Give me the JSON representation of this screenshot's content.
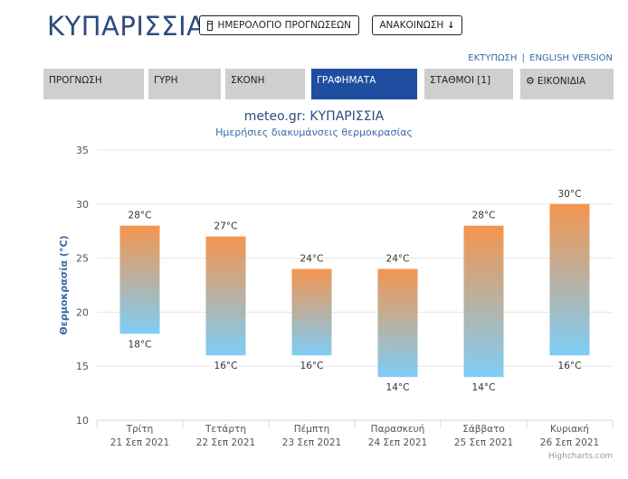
{
  "header": {
    "city": "ΚΥΠΑΡΙΣΣΙΑ",
    "calendar_button": "ΗΜΕΡΟΛΟΓΙΟ ΠΡΟΓΝΩΣΕΩΝ",
    "announcement_button": "ΑΝΑΚΟΙΝΩΣΗ",
    "print_link": "ΕΚΤΥΠΩΣΗ",
    "separator": "|",
    "english_link": "ENGLISH VERSION"
  },
  "tabs": [
    {
      "label": "ΠΡΟΓΝΩΣΗ"
    },
    {
      "label": "ΓΥΡΗ"
    },
    {
      "label": "ΣΚΟΝΗ"
    },
    {
      "label": "ΓΡΑΦΗΜΑΤΑ"
    },
    {
      "label": "ΣΤΑΘΜΟΙ [1]"
    },
    {
      "label": "ΕΙΚΟΝΙΔΙΑ"
    }
  ],
  "active_tab_index": 3,
  "colors": {
    "brand": "#2e4a7e",
    "active_tab": "#1f4da0",
    "tab": "#cfcfcf",
    "bar_top": "#f4954e",
    "bar_bottom": "#7ecdf6",
    "link": "#3b6aa8"
  },
  "chart_data": {
    "type": "bar",
    "subtype": "range",
    "title": "meteo.gr: ΚΥΠΑΡΙΣΣΙΑ",
    "subtitle": "Ημερήσιες διακυμάνσεις θερμοκρασίας",
    "ylabel": "Θερμοκρασία (°C)",
    "ylim": [
      10,
      35
    ],
    "yticks": [
      10,
      15,
      20,
      25,
      30,
      35
    ],
    "grid": true,
    "categories": [
      {
        "day": "Τρίτη",
        "date": "21 Σεπ 2021"
      },
      {
        "day": "Τετάρτη",
        "date": "22 Σεπ 2021"
      },
      {
        "day": "Πέμπτη",
        "date": "23 Σεπ 2021"
      },
      {
        "day": "Παρασκευή",
        "date": "24 Σεπ 2021"
      },
      {
        "day": "Σάββατο",
        "date": "25 Σεπ 2021"
      },
      {
        "day": "Κυριακή",
        "date": "26 Σεπ 2021"
      }
    ],
    "max": [
      28,
      27,
      24,
      24,
      28,
      30
    ],
    "min": [
      18,
      16,
      16,
      14,
      14,
      16
    ],
    "unit": "°C",
    "credit": "Highcharts.com"
  }
}
